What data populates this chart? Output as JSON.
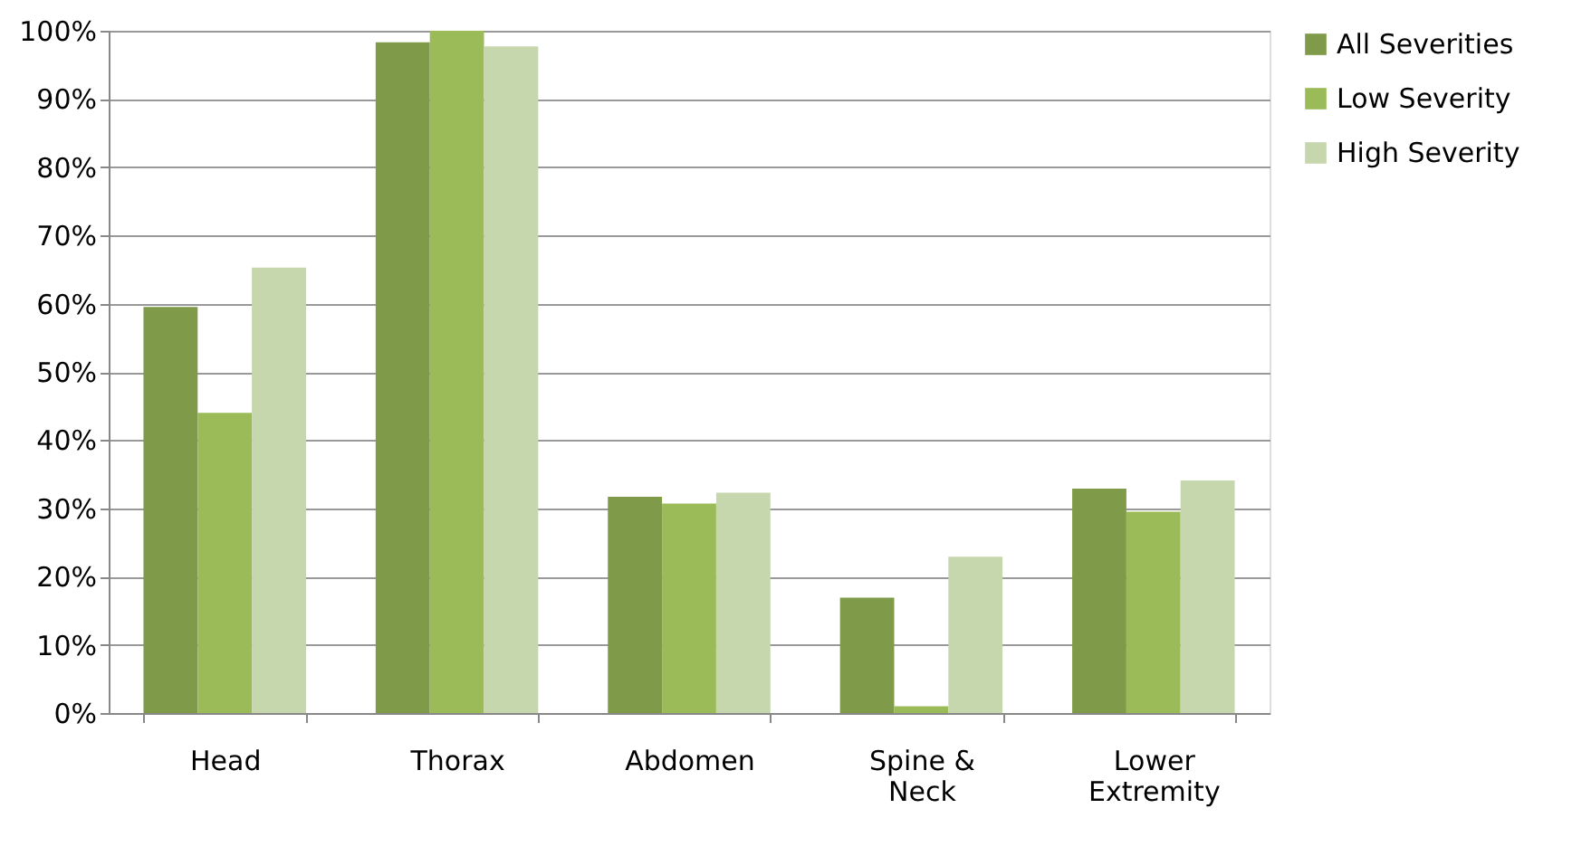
{
  "chart_data": {
    "type": "bar",
    "categories": [
      "Head",
      "Thorax",
      "Abdomen",
      "Spine &\nNeck",
      "Lower\nExtremity"
    ],
    "series": [
      {
        "name": "All Severities",
        "color": "#7f9a48",
        "values": [
          59.5,
          98.3,
          31.7,
          16.9,
          32.9
        ]
      },
      {
        "name": "Low Severity",
        "color": "#9bbb59",
        "values": [
          44,
          100,
          30.7,
          1,
          29.5
        ]
      },
      {
        "name": "High Severity",
        "color": "#c6d6ad",
        "values": [
          65.3,
          97.7,
          32.3,
          22.9,
          34.1
        ]
      }
    ],
    "ylim": [
      0,
      100
    ],
    "yticks": [
      {
        "value": 0,
        "label": "0%"
      },
      {
        "value": 10,
        "label": "10%"
      },
      {
        "value": 20,
        "label": "20%"
      },
      {
        "value": 30,
        "label": "30%"
      },
      {
        "value": 40,
        "label": "40%"
      },
      {
        "value": 50,
        "label": "50%"
      },
      {
        "value": 60,
        "label": "60%"
      },
      {
        "value": 70,
        "label": "70%"
      },
      {
        "value": 80,
        "label": "80%"
      },
      {
        "value": 90,
        "label": "90%"
      },
      {
        "value": 100,
        "label": "100%"
      }
    ],
    "grid": "y",
    "legend": "right"
  }
}
